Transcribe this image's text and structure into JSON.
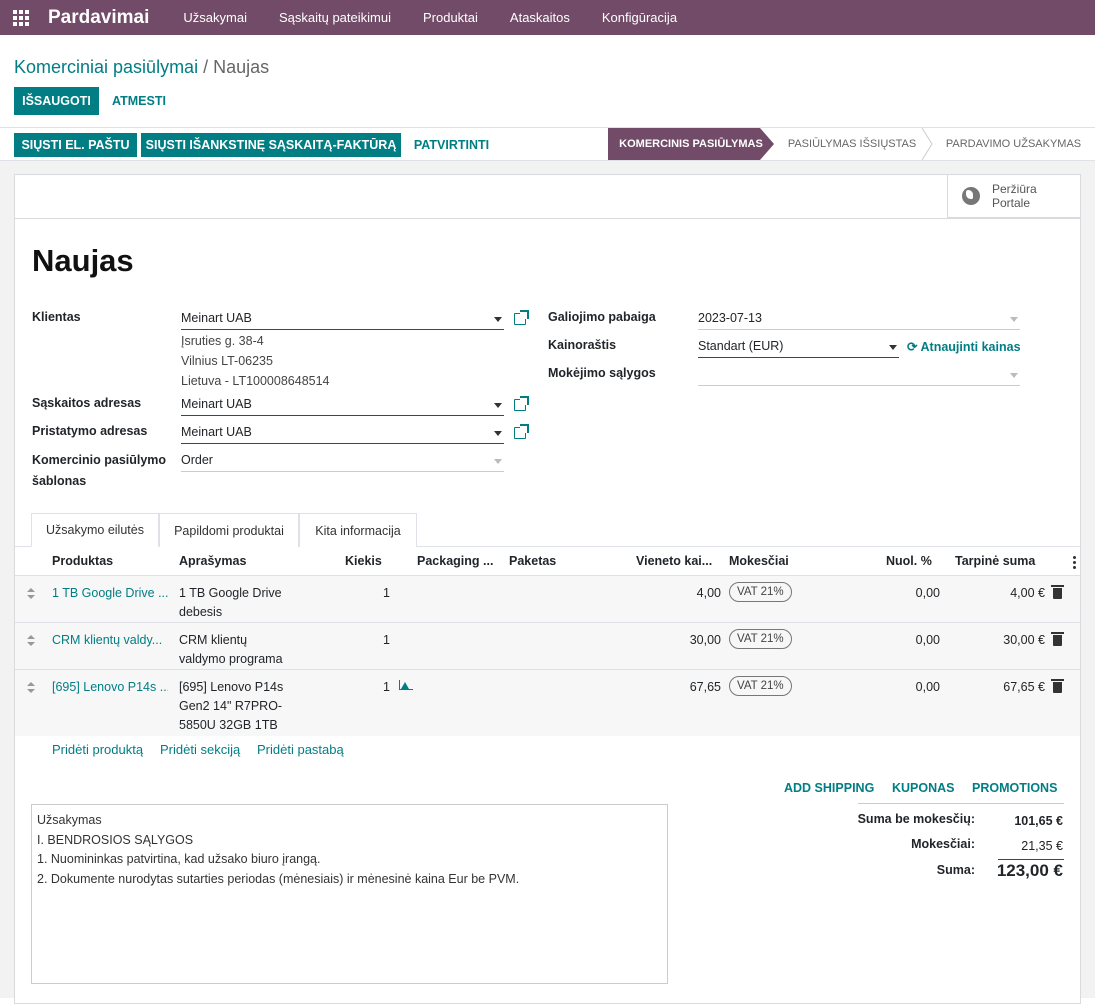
{
  "topbar": {
    "brand": "Pardavimai",
    "menu": [
      "Užsakymai",
      "Sąskaitų pateikimui",
      "Produktai",
      "Ataskaitos",
      "Konfigūracija"
    ]
  },
  "breadcrumb": {
    "parent": "Komerciniai pasiūlymai",
    "separator": "/",
    "current": "Naujas"
  },
  "actions": {
    "save": "IŠSAUGOTI",
    "discard": "ATMESTI"
  },
  "status_buttons": {
    "send_email": "SIŲSTI EL. PAŠTU",
    "send_proforma": "SIŲSTI IŠANKSTINĘ SĄSKAITĄ-FAKTŪRĄ",
    "confirm": "PATVIRTINTI"
  },
  "stages": [
    "KOMERCINIS PASIŪLYMAS",
    "PASIŪLYMAS IŠSIŲSTAS",
    "PARDAVIMO UŽSAKYMAS"
  ],
  "preview_button": {
    "line1": "Peržiūra",
    "line2": "Portale"
  },
  "form": {
    "title": "Naujas",
    "customer": {
      "label": "Klientas",
      "value": "Meinart UAB",
      "address": [
        "Įsruties g. 38-4",
        "Vilnius LT-06235",
        "Lietuva - LT100008648514"
      ]
    },
    "invoice_address": {
      "label": "Sąskaitos adresas",
      "value": "Meinart UAB"
    },
    "delivery_address": {
      "label": "Pristatymo adresas",
      "value": "Meinart UAB"
    },
    "template": {
      "label_line1": "Komercinio pasiūlymo",
      "label_line2": "šablonas",
      "value": "Order"
    },
    "validity": {
      "label": "Galiojimo pabaiga",
      "value": "2023-07-13"
    },
    "pricelist": {
      "label": "Kainoraštis",
      "value": "Standart (EUR)",
      "update_link": "Atnaujinti kainas"
    },
    "payment_terms": {
      "label": "Mokėjimo sąlygos",
      "value": ""
    }
  },
  "tabs": [
    "Užsakymo eilutės",
    "Papildomi produktai",
    "Kita informacija"
  ],
  "table": {
    "columns": [
      "Produktas",
      "Aprašymas",
      "Kiekis",
      "Packaging ...",
      "Paketas",
      "Vieneto kai...",
      "Mokesčiai",
      "Nuol. %",
      "Tarpinė suma"
    ],
    "rows": [
      {
        "product": "1 TB Google Drive ...",
        "desc1": "1 TB Google Drive",
        "desc2": "debesis",
        "desc3": "",
        "qty": "1",
        "price": "4,00",
        "tax": "VAT 21%",
        "discount": "0,00",
        "subtotal": "4,00 €"
      },
      {
        "product": "CRM klientų valdy...",
        "desc1": "CRM klientų",
        "desc2": "valdymo programa",
        "desc3": "",
        "qty": "1",
        "price": "30,00",
        "tax": "VAT 21%",
        "discount": "0,00",
        "subtotal": "30,00 €"
      },
      {
        "product": "[695] Lenovo P14s ...",
        "desc1": "[695] Lenovo P14s",
        "desc2": "Gen2 14\" R7PRO-",
        "desc3": "5850U 32GB 1TB",
        "qty": "1",
        "price": "67,65",
        "tax": "VAT 21%",
        "discount": "0,00",
        "subtotal": "67,65 €"
      }
    ]
  },
  "add_links": {
    "product": "Pridėti produktą",
    "section": "Pridėti sekciją",
    "note": "Pridėti pastabą"
  },
  "extra_buttons": {
    "shipping": "ADD SHIPPING",
    "coupon": "KUPONAS",
    "promotions": "PROMOTIONS"
  },
  "note": "Užsakymas\nI. BENDROSIOS SĄLYGOS\n1. Nuomininkas patvirtina, kad užsako biuro įrangą.\n2. Dokumente nurodytas sutarties periodas (mėnesiais) ir mėnesinė kaina Eur be PVM.",
  "totals": {
    "untaxed_label": "Suma be mokesčių:",
    "untaxed": "101,65 €",
    "taxes_label": "Mokesčiai:",
    "taxes": "21,35 €",
    "total_label": "Suma:",
    "total": "123,00 €"
  },
  "colors": {
    "brand": "#714b67",
    "accent": "#017e84"
  }
}
